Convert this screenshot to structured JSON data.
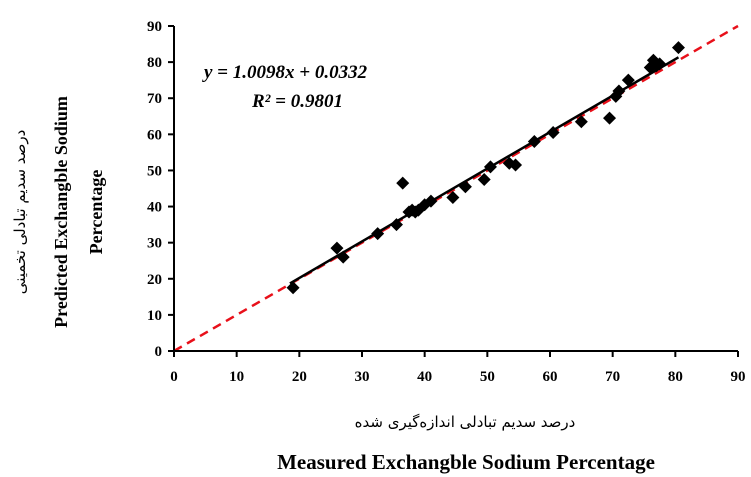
{
  "chart_data": {
    "type": "scatter",
    "xlabel_fa": "درصد سدیم تبادلی اندازه‌گیری شده",
    "xlabel": "Measured Exchangble Sodium Percentage",
    "ylabel_fa": "درصد سدیم تبادلی تخمینی",
    "ylabel": "Predicted Exchangble Sodium",
    "ylabel_line2": "Percentage",
    "xlim": [
      0,
      90
    ],
    "ylim": [
      0,
      90
    ],
    "x_ticks": [
      0,
      10,
      20,
      30,
      40,
      50,
      60,
      70,
      80,
      90
    ],
    "y_ticks": [
      0,
      10,
      20,
      30,
      40,
      50,
      60,
      70,
      80,
      90
    ],
    "grid": false,
    "equation": "y = 1.0098x + 0.0332",
    "r_squared": "R² = 0.9801",
    "fit_line": {
      "slope": 1.0098,
      "intercept": 0.0332,
      "x_range": [
        18.5,
        80.5
      ],
      "color": "#000000"
    },
    "reference_line": {
      "slope": 1,
      "intercept": 0,
      "style": "dashed",
      "color": "#e8101a"
    },
    "marker": {
      "shape": "diamond",
      "color": "#000000"
    },
    "points": [
      {
        "x": 19,
        "y": 17.5
      },
      {
        "x": 26,
        "y": 28.5
      },
      {
        "x": 27,
        "y": 26
      },
      {
        "x": 32.5,
        "y": 32.5
      },
      {
        "x": 35.5,
        "y": 35
      },
      {
        "x": 36.5,
        "y": 46.5
      },
      {
        "x": 37.5,
        "y": 38.5
      },
      {
        "x": 38,
        "y": 39
      },
      {
        "x": 38.5,
        "y": 38.5
      },
      {
        "x": 39,
        "y": 39
      },
      {
        "x": 40,
        "y": 40.5
      },
      {
        "x": 41,
        "y": 41.5
      },
      {
        "x": 44.5,
        "y": 42.5
      },
      {
        "x": 46.5,
        "y": 45.5
      },
      {
        "x": 49.5,
        "y": 47.5
      },
      {
        "x": 50.5,
        "y": 51
      },
      {
        "x": 53.5,
        "y": 52
      },
      {
        "x": 54.5,
        "y": 51.5
      },
      {
        "x": 57.5,
        "y": 58
      },
      {
        "x": 60.5,
        "y": 60.5
      },
      {
        "x": 65,
        "y": 63.5
      },
      {
        "x": 69.5,
        "y": 64.5
      },
      {
        "x": 70.5,
        "y": 70.5
      },
      {
        "x": 71,
        "y": 72
      },
      {
        "x": 72.5,
        "y": 75
      },
      {
        "x": 76,
        "y": 78.5
      },
      {
        "x": 76.5,
        "y": 80.5
      },
      {
        "x": 77,
        "y": 79
      },
      {
        "x": 77.5,
        "y": 79.5
      },
      {
        "x": 80.5,
        "y": 84
      }
    ]
  }
}
